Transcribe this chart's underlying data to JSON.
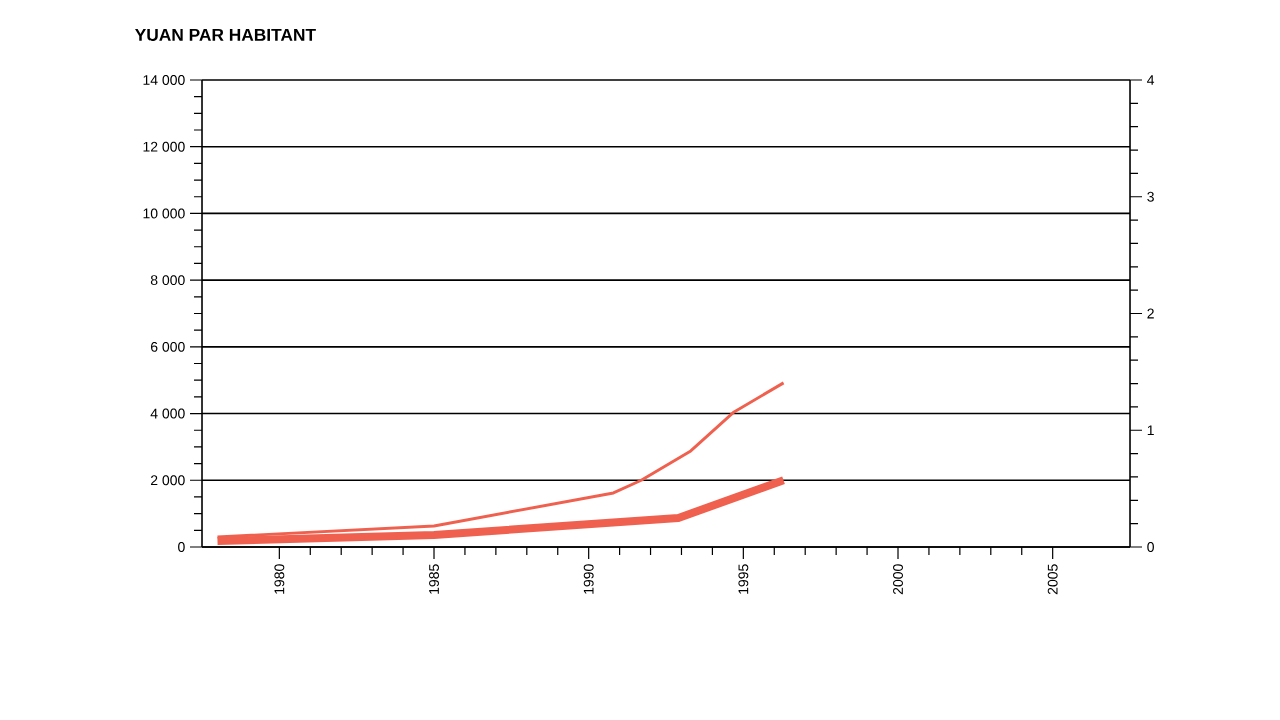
{
  "chart_data": {
    "type": "line",
    "title": "YUAN PAR HABITANT",
    "x": [
      1978,
      1985,
      1990.8,
      1991.7,
      1993.3,
      1994.7,
      1996.3
    ],
    "series": [
      {
        "color": "#f0604f",
        "values": [
          300,
          630,
          1620,
          2000,
          2880,
          4050,
          4920
        ]
      },
      {
        "color": "#f0604f",
        "x": [
          1978,
          1985,
          1992.9,
          1996.3
        ],
        "values": [
          180,
          360,
          870,
          2000
        ]
      }
    ],
    "xlim": [
      1977.5,
      2007.5
    ],
    "xticks": [
      1980,
      1985,
      1990,
      1995,
      2000,
      2005
    ],
    "ylim": [
      0,
      14000
    ],
    "yticks": [
      {
        "value": 0,
        "label": "0"
      },
      {
        "value": 2000,
        "label": "2 000"
      },
      {
        "value": 4000,
        "label": "4 000"
      },
      {
        "value": 6000,
        "label": "6 000"
      },
      {
        "value": 8000,
        "label": "8 000"
      },
      {
        "value": 10000,
        "label": "10 000"
      },
      {
        "value": 12000,
        "label": "12 000"
      },
      {
        "value": 14000,
        "label": "14 000"
      }
    ],
    "y2lim": [
      0,
      4
    ],
    "y2ticks": [
      0,
      1,
      2,
      3,
      4
    ],
    "grid": "y",
    "marker": "none",
    "line_style": "solid"
  }
}
